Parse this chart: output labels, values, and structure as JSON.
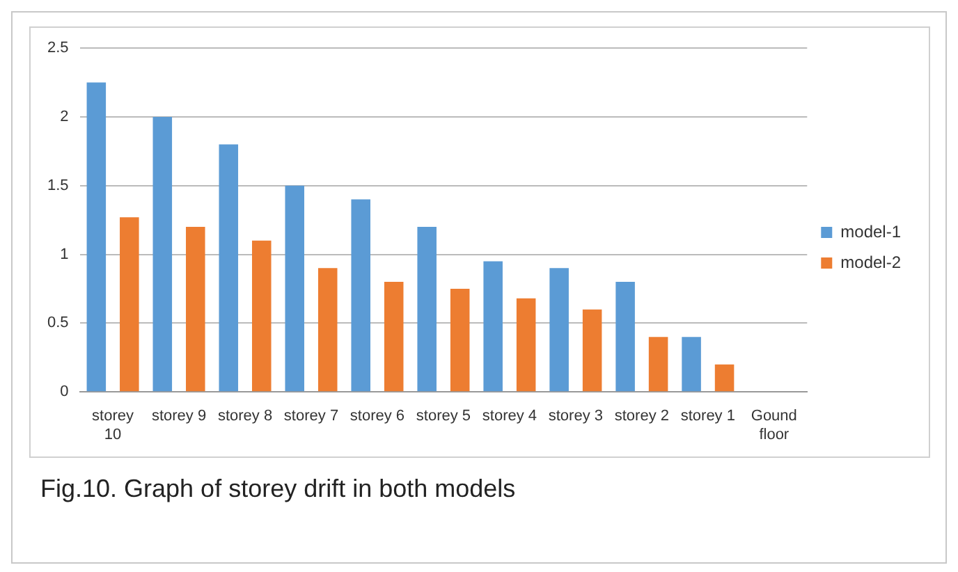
{
  "chart_data": {
    "type": "bar",
    "categories": [
      "storey 10",
      "storey 9",
      "storey 8",
      "storey 7",
      "storey 6",
      "storey 5",
      "storey 4",
      "storey 3",
      "storey 2",
      "storey 1",
      "Gound floor"
    ],
    "series": [
      {
        "name": "model-1",
        "color": "#5b9bd5",
        "values": [
          2.25,
          2.0,
          1.8,
          1.5,
          1.4,
          1.2,
          0.95,
          0.9,
          0.8,
          0.4,
          0
        ]
      },
      {
        "name": "model-2",
        "color": "#ed7d31",
        "values": [
          1.27,
          1.2,
          1.1,
          0.9,
          0.8,
          0.75,
          0.68,
          0.6,
          0.4,
          0.2,
          0
        ]
      }
    ],
    "ylim": [
      0,
      2.5
    ],
    "yticks": [
      0,
      0.5,
      1,
      1.5,
      2,
      2.5
    ],
    "grid": "y",
    "legend": "right",
    "annotations": [
      "Fig.10. Graph of storey drift in both models"
    ]
  }
}
